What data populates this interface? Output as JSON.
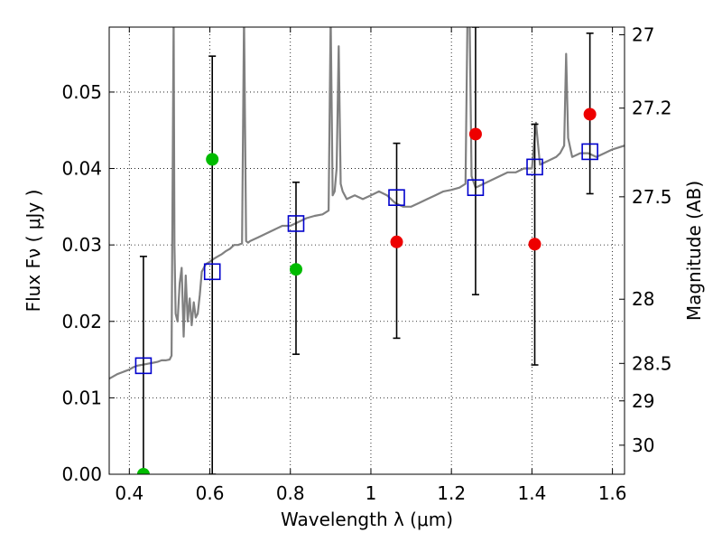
{
  "chart_data": {
    "type": "scatter",
    "xlabel": "Wavelength  λ (μm)",
    "ylabel": "Flux  Fν  ( μJy )",
    "y2label": "Magnitude (AB)",
    "xlim": [
      0.35,
      1.63
    ],
    "ylim": [
      0.0,
      0.0585
    ],
    "grid": true,
    "x_ticks": [
      0.4,
      0.6,
      0.8,
      1.0,
      1.2,
      1.4,
      1.6
    ],
    "x_tick_labels": [
      "0.4",
      "0.6",
      "0.8",
      "1",
      "1.2",
      "1.4",
      "1.6"
    ],
    "y_ticks": [
      0.0,
      0.01,
      0.02,
      0.03,
      0.04,
      0.05
    ],
    "y_tick_labels": [
      "0.00",
      "0.01",
      "0.02",
      "0.03",
      "0.04",
      "0.05"
    ],
    "y2_ticks": [
      {
        "label": "27",
        "flux": 0.0575
      },
      {
        "label": "27.2",
        "flux": 0.0479
      },
      {
        "label": "27.5",
        "flux": 0.0363
      },
      {
        "label": "28",
        "flux": 0.0229
      },
      {
        "label": "28.5",
        "flux": 0.0145
      },
      {
        "label": "29",
        "flux": 0.0096
      },
      {
        "label": "30",
        "flux": 0.0038
      }
    ],
    "series": [
      {
        "kind": "model_spectrum",
        "color": "#808080",
        "x": [
          0.35,
          0.36,
          0.37,
          0.38,
          0.39,
          0.4,
          0.41,
          0.42,
          0.43,
          0.44,
          0.45,
          0.46,
          0.47,
          0.48,
          0.49,
          0.5,
          0.505,
          0.51,
          0.512,
          0.515,
          0.52,
          0.525,
          0.53,
          0.535,
          0.54,
          0.545,
          0.55,
          0.555,
          0.56,
          0.565,
          0.57,
          0.575,
          0.58,
          0.59,
          0.6,
          0.61,
          0.62,
          0.63,
          0.64,
          0.65,
          0.66,
          0.67,
          0.68,
          0.685,
          0.69,
          0.695,
          0.7,
          0.72,
          0.74,
          0.76,
          0.78,
          0.8,
          0.82,
          0.84,
          0.86,
          0.88,
          0.895,
          0.9,
          0.905,
          0.91,
          0.915,
          0.92,
          0.925,
          0.93,
          0.94,
          0.96,
          0.98,
          1.0,
          1.02,
          1.04,
          1.06,
          1.08,
          1.1,
          1.12,
          1.14,
          1.16,
          1.18,
          1.2,
          1.22,
          1.235,
          1.24,
          1.245,
          1.25,
          1.26,
          1.28,
          1.3,
          1.32,
          1.34,
          1.36,
          1.38,
          1.4,
          1.41,
          1.42,
          1.44,
          1.46,
          1.47,
          1.48,
          1.485,
          1.49,
          1.5,
          1.52,
          1.54,
          1.56,
          1.58,
          1.6,
          1.63
        ],
        "y": [
          0.0125,
          0.0128,
          0.0131,
          0.0133,
          0.0135,
          0.0137,
          0.014,
          0.0142,
          0.0143,
          0.0144,
          0.0145,
          0.0146,
          0.0147,
          0.0149,
          0.0149,
          0.015,
          0.0155,
          0.06,
          0.03,
          0.021,
          0.02,
          0.025,
          0.027,
          0.018,
          0.026,
          0.02,
          0.023,
          0.0195,
          0.0225,
          0.0205,
          0.021,
          0.0235,
          0.0265,
          0.0275,
          0.0278,
          0.0282,
          0.0285,
          0.0288,
          0.0292,
          0.0295,
          0.03,
          0.03,
          0.0302,
          0.06,
          0.0305,
          0.0303,
          0.0305,
          0.031,
          0.0315,
          0.032,
          0.0325,
          0.0325,
          0.033,
          0.0335,
          0.0338,
          0.034,
          0.0345,
          0.06,
          0.0365,
          0.037,
          0.04,
          0.056,
          0.038,
          0.037,
          0.036,
          0.0365,
          0.036,
          0.0365,
          0.037,
          0.0365,
          0.0355,
          0.035,
          0.035,
          0.0355,
          0.036,
          0.0365,
          0.037,
          0.0372,
          0.0375,
          0.038,
          0.06,
          0.06,
          0.039,
          0.0375,
          0.038,
          0.0385,
          0.039,
          0.0395,
          0.0395,
          0.04,
          0.04,
          0.046,
          0.0405,
          0.041,
          0.0415,
          0.042,
          0.043,
          0.055,
          0.044,
          0.0415,
          0.042,
          0.042,
          0.0415,
          0.042,
          0.0425,
          0.043
        ]
      },
      {
        "kind": "model_photometry",
        "marker": "open-square",
        "color": "#0000cc",
        "x": [
          0.435,
          0.606,
          0.814,
          1.064,
          1.26,
          1.407,
          1.544
        ],
        "y": [
          0.0142,
          0.0265,
          0.0328,
          0.0362,
          0.0375,
          0.0402,
          0.0422
        ]
      },
      {
        "kind": "observed_points",
        "marker": "filled-circle",
        "color": "#00bb00",
        "x": [
          0.435,
          0.606,
          0.814
        ],
        "y": [
          0.0,
          0.0412,
          0.0268
        ]
      },
      {
        "kind": "observed_points",
        "marker": "filled-circle",
        "color": "#ee0000",
        "x": [
          1.064,
          1.26,
          1.407,
          1.544
        ],
        "y": [
          0.0304,
          0.0445,
          0.0301,
          0.0471
        ]
      },
      {
        "kind": "error_bars",
        "color": "#000000",
        "x": [
          0.435,
          0.606,
          0.814,
          1.064,
          1.26,
          1.407,
          1.544
        ],
        "low": [
          0.0,
          0.0,
          0.0157,
          0.0178,
          0.0235,
          0.0143,
          0.0367
        ],
        "high": [
          0.0285,
          0.0547,
          0.0382,
          0.0433,
          0.0585,
          0.0458,
          0.0577
        ]
      }
    ]
  }
}
